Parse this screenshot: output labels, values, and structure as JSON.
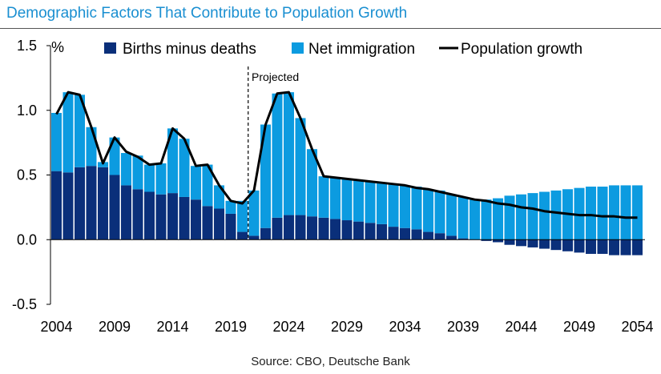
{
  "title": "Demographic Factors That Contribute to Population Growth",
  "source": "Source: CBO, Deutsche Bank",
  "colors": {
    "births": "#0a2f7a",
    "immigration": "#0c9be0",
    "line": "#000000",
    "title": "#1a8fd1"
  },
  "chart_data": {
    "type": "bar",
    "stacked": true,
    "unit_label": "%",
    "x": [
      2004,
      2005,
      2006,
      2007,
      2008,
      2009,
      2010,
      2011,
      2012,
      2013,
      2014,
      2015,
      2016,
      2017,
      2018,
      2019,
      2020,
      2021,
      2022,
      2023,
      2024,
      2025,
      2026,
      2027,
      2028,
      2029,
      2030,
      2031,
      2032,
      2033,
      2034,
      2035,
      2036,
      2037,
      2038,
      2039,
      2040,
      2041,
      2042,
      2043,
      2044,
      2045,
      2046,
      2047,
      2048,
      2049,
      2050,
      2051,
      2052,
      2053,
      2054
    ],
    "xticks": [
      "2004",
      "2009",
      "2014",
      "2019",
      "2024",
      "2029",
      "2034",
      "2039",
      "2044",
      "2049",
      "2054"
    ],
    "ylim": [
      -0.5,
      1.5
    ],
    "yticks": [
      "1.5",
      "1.0",
      "0.5",
      "0.0",
      "-0.5"
    ],
    "projected_label": "Projected",
    "projected_start": 2020.5,
    "series": [
      {
        "name": "Births minus deaths",
        "type": "bar",
        "values": [
          0.53,
          0.52,
          0.56,
          0.57,
          0.56,
          0.5,
          0.42,
          0.39,
          0.37,
          0.35,
          0.36,
          0.33,
          0.31,
          0.26,
          0.24,
          0.2,
          0.06,
          0.03,
          0.09,
          0.17,
          0.19,
          0.19,
          0.18,
          0.17,
          0.16,
          0.15,
          0.14,
          0.13,
          0.12,
          0.1,
          0.09,
          0.08,
          0.06,
          0.05,
          0.03,
          0.01,
          0.0,
          -0.01,
          -0.02,
          -0.04,
          -0.05,
          -0.06,
          -0.07,
          -0.08,
          -0.09,
          -0.1,
          -0.11,
          -0.11,
          -0.12,
          -0.12,
          -0.12
        ]
      },
      {
        "name": "Net immigration",
        "type": "bar",
        "values": [
          0.45,
          0.62,
          0.56,
          0.3,
          0.04,
          0.29,
          0.25,
          0.26,
          0.21,
          0.24,
          0.5,
          0.45,
          0.26,
          0.32,
          0.18,
          0.1,
          0.24,
          0.35,
          0.8,
          0.96,
          0.95,
          0.75,
          0.52,
          0.32,
          0.32,
          0.32,
          0.32,
          0.32,
          0.32,
          0.33,
          0.33,
          0.33,
          0.33,
          0.33,
          0.32,
          0.32,
          0.31,
          0.31,
          0.32,
          0.34,
          0.35,
          0.36,
          0.37,
          0.38,
          0.39,
          0.4,
          0.41,
          0.41,
          0.42,
          0.42,
          0.42
        ]
      },
      {
        "name": "Population growth",
        "type": "line",
        "values": [
          0.97,
          1.14,
          1.12,
          0.87,
          0.59,
          0.79,
          0.68,
          0.64,
          0.58,
          0.59,
          0.86,
          0.78,
          0.57,
          0.58,
          0.42,
          0.3,
          0.28,
          0.38,
          0.89,
          1.13,
          1.14,
          0.94,
          0.7,
          0.49,
          0.48,
          0.47,
          0.46,
          0.45,
          0.44,
          0.43,
          0.42,
          0.4,
          0.39,
          0.37,
          0.35,
          0.33,
          0.31,
          0.3,
          0.28,
          0.27,
          0.25,
          0.24,
          0.22,
          0.21,
          0.2,
          0.19,
          0.19,
          0.18,
          0.18,
          0.17,
          0.17
        ]
      }
    ]
  }
}
